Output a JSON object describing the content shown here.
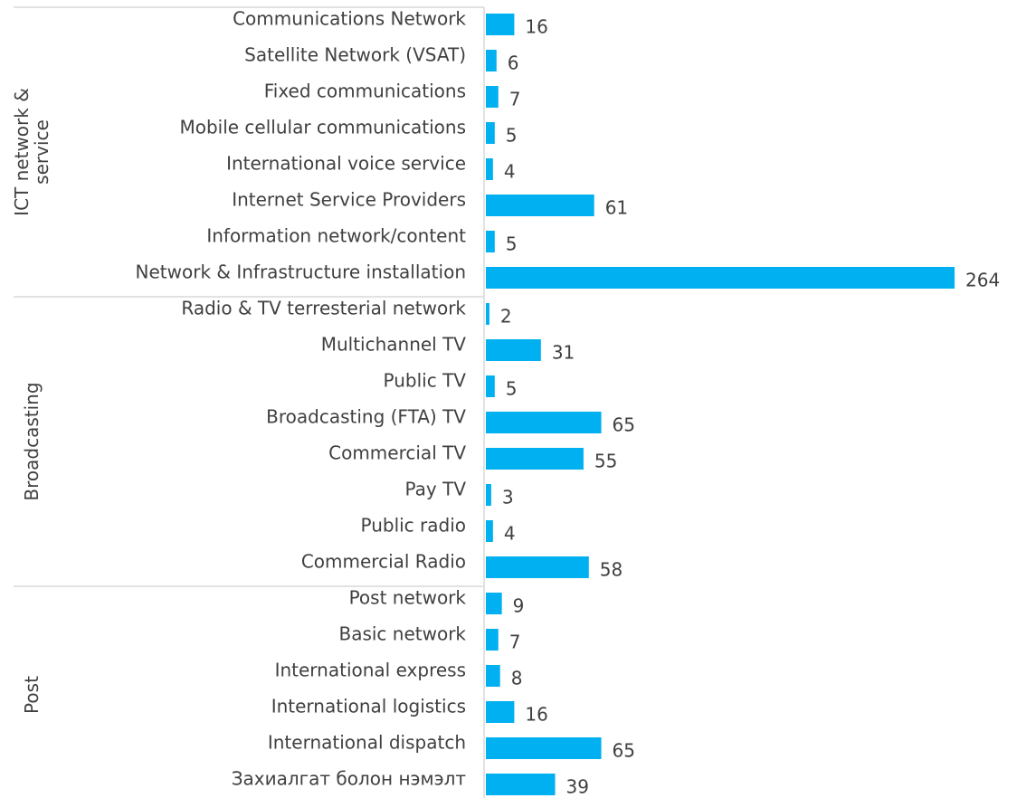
{
  "chart_data": {
    "type": "bar",
    "color": "#00b0f0",
    "groups": [
      {
        "name": "ICT network & service",
        "categories": [
          "Communications Network",
          "Satellite Network (VSAT)",
          "Fixed communications",
          "Mobile cellular communications",
          "International voice service",
          "Internet Service Providers",
          "Information network/content",
          "Network & Infrastructure installation"
        ],
        "values": [
          16,
          6,
          7,
          5,
          4,
          61,
          5,
          264
        ]
      },
      {
        "name": "Broadcasting",
        "categories": [
          "Radio & TV terresterial network",
          "Multichannel TV",
          "Public TV",
          "Broadcasting (FTA) TV",
          "Commercial TV",
          "Pay TV",
          "Public radio",
          "Commercial Radio"
        ],
        "values": [
          2,
          31,
          5,
          65,
          55,
          3,
          4,
          58
        ]
      },
      {
        "name": "Post",
        "categories": [
          "Post network",
          "Basic network",
          "International express",
          "International logistics",
          "International dispatch",
          "Захиалгат болон нэмэлт"
        ],
        "values": [
          9,
          7,
          8,
          16,
          65,
          39
        ]
      }
    ]
  }
}
